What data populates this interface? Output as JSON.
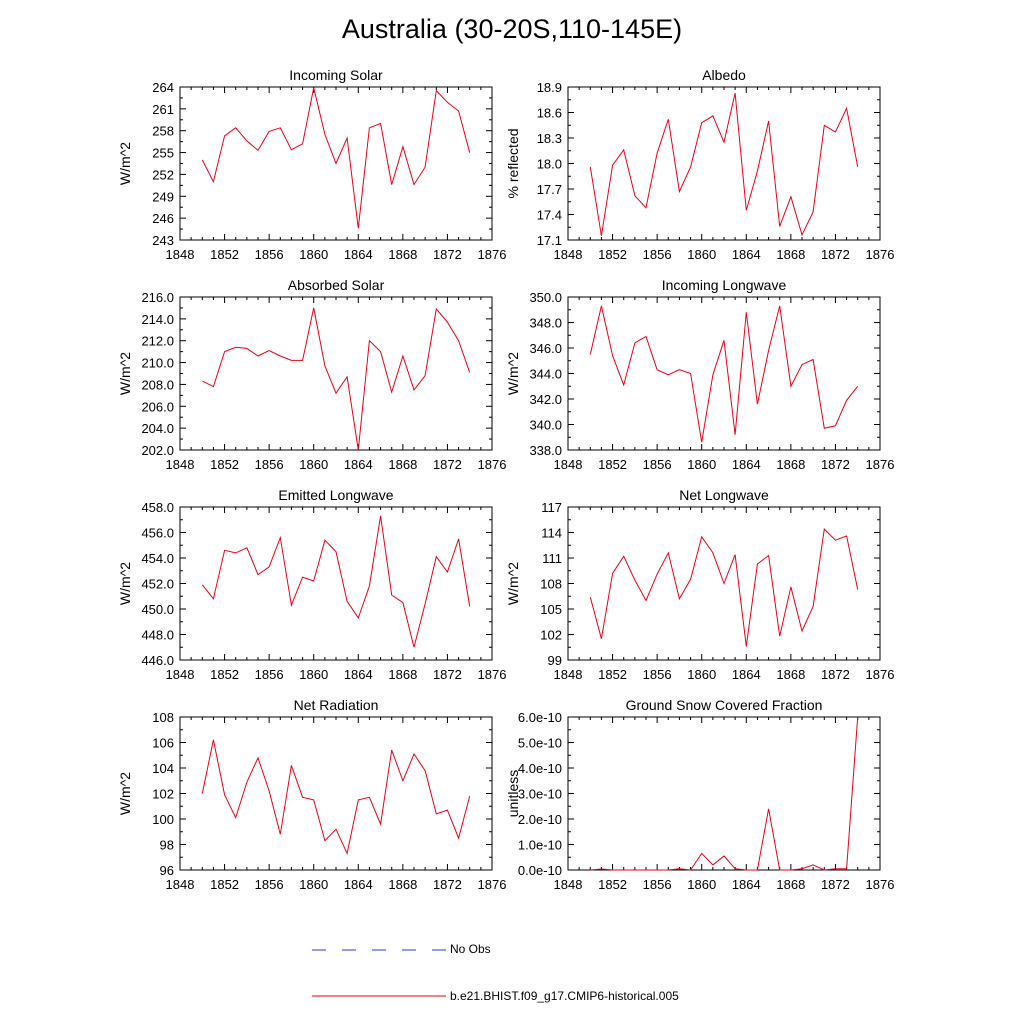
{
  "title": "Australia (30-20S,110-145E)",
  "legend": {
    "placement": "bottom-center",
    "entries": [
      {
        "name": "No Obs",
        "color": "#3333cc",
        "style": "dashed"
      },
      {
        "name": "b.e21.BHIST.f09_g17.CMIP6-historical.005",
        "color": "#e8001c",
        "style": "solid"
      }
    ]
  },
  "chart_data": [
    {
      "type": "line",
      "title": "Incoming Solar",
      "ylabel": "W/m^2",
      "xlim": [
        1848,
        1876
      ],
      "ylim": [
        243,
        264
      ],
      "xticks": [
        "1848",
        "1852",
        "1856",
        "1860",
        "1864",
        "1868",
        "1872",
        "1876"
      ],
      "yticks": [
        "243",
        "246",
        "249",
        "252",
        "255",
        "258",
        "261",
        "264"
      ],
      "x": [
        1850,
        1851,
        1852,
        1853,
        1854,
        1855,
        1856,
        1857,
        1858,
        1859,
        1860,
        1861,
        1862,
        1863,
        1864,
        1865,
        1866,
        1867,
        1868,
        1869,
        1870,
        1871,
        1872,
        1873,
        1874
      ],
      "series": [
        {
          "values": [
            254.0,
            251.0,
            257.3,
            258.4,
            256.6,
            255.3,
            257.9,
            258.4,
            255.4,
            256.2,
            263.9,
            257.5,
            253.5,
            257.0,
            244.6,
            258.4,
            259.0,
            250.6,
            255.8,
            250.6,
            253.0,
            263.5,
            261.9,
            260.7,
            255.0
          ]
        }
      ]
    },
    {
      "type": "line",
      "title": "Albedo",
      "ylabel": "% reflected",
      "xlim": [
        1848,
        1876
      ],
      "ylim": [
        17.1,
        18.9
      ],
      "xticks": [
        "1848",
        "1852",
        "1856",
        "1860",
        "1864",
        "1868",
        "1872",
        "1876"
      ],
      "yticks": [
        "17.1",
        "17.4",
        "17.7",
        "18.0",
        "18.3",
        "18.6",
        "18.9"
      ],
      "x": [
        1850,
        1851,
        1852,
        1853,
        1854,
        1855,
        1856,
        1857,
        1858,
        1859,
        1860,
        1861,
        1862,
        1863,
        1864,
        1865,
        1866,
        1867,
        1868,
        1869,
        1870,
        1871,
        1872,
        1873,
        1874
      ],
      "series": [
        {
          "values": [
            17.96,
            17.15,
            17.98,
            18.16,
            17.62,
            17.48,
            18.12,
            18.52,
            17.67,
            17.96,
            18.48,
            18.56,
            18.25,
            18.83,
            17.45,
            17.91,
            18.5,
            17.26,
            17.61,
            17.16,
            17.43,
            18.45,
            18.37,
            18.65,
            17.96
          ]
        }
      ]
    },
    {
      "type": "line",
      "title": "Absorbed Solar",
      "ylabel": "W/m^2",
      "xlim": [
        1848,
        1876
      ],
      "ylim": [
        202.0,
        216.0
      ],
      "xticks": [
        "1848",
        "1852",
        "1856",
        "1860",
        "1864",
        "1868",
        "1872",
        "1876"
      ],
      "yticks": [
        "202.0",
        "204.0",
        "206.0",
        "208.0",
        "210.0",
        "212.0",
        "214.0",
        "216.0"
      ],
      "x": [
        1850,
        1851,
        1852,
        1853,
        1854,
        1855,
        1856,
        1857,
        1858,
        1859,
        1860,
        1861,
        1862,
        1863,
        1864,
        1865,
        1866,
        1867,
        1868,
        1869,
        1870,
        1871,
        1872,
        1873,
        1874
      ],
      "series": [
        {
          "values": [
            208.3,
            207.8,
            211.0,
            211.4,
            211.3,
            210.6,
            211.1,
            210.6,
            210.2,
            210.2,
            215.0,
            209.7,
            207.2,
            208.7,
            202.0,
            212.0,
            211.0,
            207.3,
            210.6,
            207.5,
            208.8,
            214.9,
            213.7,
            212.0,
            209.1
          ]
        }
      ]
    },
    {
      "type": "line",
      "title": "Incoming Longwave",
      "ylabel": "W/m^2",
      "xlim": [
        1848,
        1876
      ],
      "ylim": [
        338.0,
        350.0
      ],
      "xticks": [
        "1848",
        "1852",
        "1856",
        "1860",
        "1864",
        "1868",
        "1872",
        "1876"
      ],
      "yticks": [
        "338.0",
        "340.0",
        "342.0",
        "344.0",
        "346.0",
        "348.0",
        "350.0"
      ],
      "x": [
        1850,
        1851,
        1852,
        1853,
        1854,
        1855,
        1856,
        1857,
        1858,
        1859,
        1860,
        1861,
        1862,
        1863,
        1864,
        1865,
        1866,
        1867,
        1868,
        1869,
        1870,
        1871,
        1872,
        1873,
        1874
      ],
      "series": [
        {
          "values": [
            345.5,
            349.3,
            345.4,
            343.1,
            346.4,
            346.9,
            344.3,
            343.9,
            344.3,
            344.0,
            338.6,
            343.9,
            346.6,
            339.2,
            348.8,
            341.6,
            345.8,
            349.3,
            343.0,
            344.7,
            345.1,
            339.7,
            339.9,
            341.9,
            343.0
          ]
        }
      ]
    },
    {
      "type": "line",
      "title": "Emitted Longwave",
      "ylabel": "W/m^2",
      "xlim": [
        1848,
        1876
      ],
      "ylim": [
        446.0,
        458.0
      ],
      "xticks": [
        "1848",
        "1852",
        "1856",
        "1860",
        "1864",
        "1868",
        "1872",
        "1876"
      ],
      "yticks": [
        "446.0",
        "448.0",
        "450.0",
        "452.0",
        "454.0",
        "456.0",
        "458.0"
      ],
      "x": [
        1850,
        1851,
        1852,
        1853,
        1854,
        1855,
        1856,
        1857,
        1858,
        1859,
        1860,
        1861,
        1862,
        1863,
        1864,
        1865,
        1866,
        1867,
        1868,
        1869,
        1870,
        1871,
        1872,
        1873,
        1874
      ],
      "series": [
        {
          "values": [
            451.9,
            450.8,
            454.6,
            454.4,
            454.8,
            452.7,
            453.3,
            455.6,
            450.3,
            452.5,
            452.2,
            455.4,
            454.5,
            450.6,
            449.3,
            451.8,
            457.3,
            451.1,
            450.5,
            447.0,
            450.4,
            454.1,
            452.9,
            455.5,
            450.2
          ]
        }
      ]
    },
    {
      "type": "line",
      "title": "Net Longwave",
      "ylabel": "W/m^2",
      "xlim": [
        1848,
        1876
      ],
      "ylim": [
        99,
        117
      ],
      "xticks": [
        "1848",
        "1852",
        "1856",
        "1860",
        "1864",
        "1868",
        "1872",
        "1876"
      ],
      "yticks": [
        "99",
        "102",
        "105",
        "108",
        "111",
        "114",
        "117"
      ],
      "x": [
        1850,
        1851,
        1852,
        1853,
        1854,
        1855,
        1856,
        1857,
        1858,
        1859,
        1860,
        1861,
        1862,
        1863,
        1864,
        1865,
        1866,
        1867,
        1868,
        1869,
        1870,
        1871,
        1872,
        1873,
        1874
      ],
      "series": [
        {
          "values": [
            106.4,
            101.5,
            109.2,
            111.2,
            108.4,
            106.0,
            109.1,
            111.6,
            106.2,
            108.5,
            113.5,
            111.6,
            108.0,
            111.4,
            100.6,
            110.3,
            111.3,
            101.8,
            107.6,
            102.4,
            105.3,
            114.4,
            113.1,
            113.6,
            107.3
          ]
        }
      ]
    },
    {
      "type": "line",
      "title": "Net Radiation",
      "ylabel": "W/m^2",
      "xlim": [
        1848,
        1876
      ],
      "ylim": [
        96,
        108
      ],
      "xticks": [
        "1848",
        "1852",
        "1856",
        "1860",
        "1864",
        "1868",
        "1872",
        "1876"
      ],
      "yticks": [
        "96",
        "98",
        "100",
        "102",
        "104",
        "106",
        "108"
      ],
      "x": [
        1850,
        1851,
        1852,
        1853,
        1854,
        1855,
        1856,
        1857,
        1858,
        1859,
        1860,
        1861,
        1862,
        1863,
        1864,
        1865,
        1866,
        1867,
        1868,
        1869,
        1870,
        1871,
        1872,
        1873,
        1874
      ],
      "series": [
        {
          "values": [
            102.0,
            106.2,
            101.9,
            100.1,
            102.9,
            104.8,
            102.2,
            98.8,
            104.2,
            101.7,
            101.5,
            98.3,
            99.2,
            97.3,
            101.5,
            101.7,
            99.6,
            105.4,
            103.0,
            105.1,
            103.8,
            100.4,
            100.7,
            98.5,
            101.8
          ]
        }
      ]
    },
    {
      "type": "line",
      "title": "Ground Snow Covered Fraction",
      "ylabel": "unitless",
      "xlim": [
        1848,
        1876
      ],
      "ylim": [
        0,
        6e-10
      ],
      "xticks": [
        "1848",
        "1852",
        "1856",
        "1860",
        "1864",
        "1868",
        "1872",
        "1876"
      ],
      "yticks": [
        "0.0e-10",
        "1.0e-10",
        "2.0e-10",
        "3.0e-10",
        "4.0e-10",
        "5.0e-10",
        "6.0e-10"
      ],
      "x": [
        1850,
        1851,
        1852,
        1853,
        1854,
        1855,
        1856,
        1857,
        1858,
        1859,
        1860,
        1861,
        1862,
        1863,
        1864,
        1865,
        1866,
        1867,
        1868,
        1869,
        1870,
        1871,
        1872,
        1873,
        1874
      ],
      "series": [
        {
          "values": [
            0,
            4e-12,
            0,
            0,
            0,
            0,
            0,
            0,
            5e-12,
            0,
            6.5e-11,
            2e-11,
            5.5e-11,
            5e-12,
            0,
            0,
            2.4e-10,
            0,
            0,
            5e-12,
            2e-11,
            0,
            5e-12,
            5e-12,
            6e-10
          ]
        }
      ]
    }
  ]
}
